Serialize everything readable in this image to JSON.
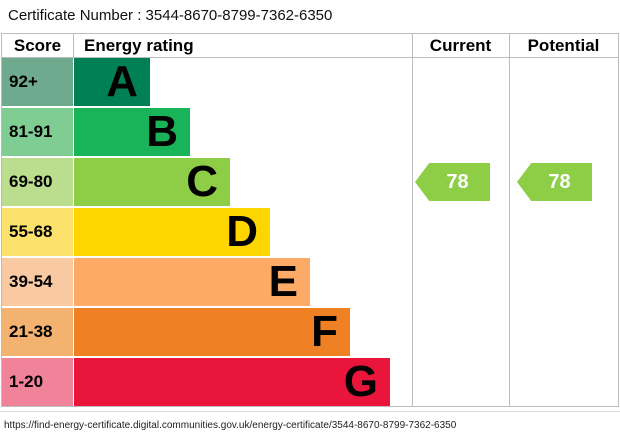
{
  "title": "Certificate Number : 3544-8670-8799-7362-6350",
  "table": {
    "headers": {
      "score": "Score",
      "rating": "Energy rating",
      "current": "Current",
      "potential": "Potential"
    },
    "bands": [
      {
        "score": "92+",
        "letter": "A",
        "color": "#008054",
        "tint": "#6fa98e"
      },
      {
        "score": "81-91",
        "letter": "B",
        "color": "#19b459",
        "tint": "#7fcd92"
      },
      {
        "score": "69-80",
        "letter": "C",
        "color": "#8dce46",
        "tint": "#badd8e"
      },
      {
        "score": "55-68",
        "letter": "D",
        "color": "#ffd500",
        "tint": "#fce16d"
      },
      {
        "score": "39-54",
        "letter": "E",
        "color": "#fcaa65",
        "tint": "#f9c9a2"
      },
      {
        "score": "21-38",
        "letter": "F",
        "color": "#ef8023",
        "tint": "#f3b26f"
      },
      {
        "score": "1-20",
        "letter": "G",
        "color": "#e9153b",
        "tint": "#f0839a"
      }
    ],
    "current": {
      "value": "78",
      "band_index": 2,
      "arrow_color": "#8dce46"
    },
    "potential": {
      "value": "78",
      "band_index": 2,
      "arrow_color": "#8dce46"
    }
  },
  "footer": {
    "url": "https://find-energy-certificate.digital.communities.gov.uk/energy-certificate/3544-8670-8799-7362-6350"
  },
  "chart_data": {
    "type": "bar",
    "title": "Energy rating",
    "categories": [
      "A",
      "B",
      "C",
      "D",
      "E",
      "F",
      "G"
    ],
    "score_ranges": [
      "92+",
      "81-91",
      "69-80",
      "55-68",
      "39-54",
      "21-38",
      "1-20"
    ],
    "band_colors": [
      "#008054",
      "#19b459",
      "#8dce46",
      "#ffd500",
      "#fcaa65",
      "#ef8023",
      "#e9153b"
    ],
    "series": [
      {
        "name": "Current",
        "value": 78,
        "band": "C"
      },
      {
        "name": "Potential",
        "value": 78,
        "band": "C"
      }
    ],
    "legend_position": "none",
    "grid": false
  }
}
